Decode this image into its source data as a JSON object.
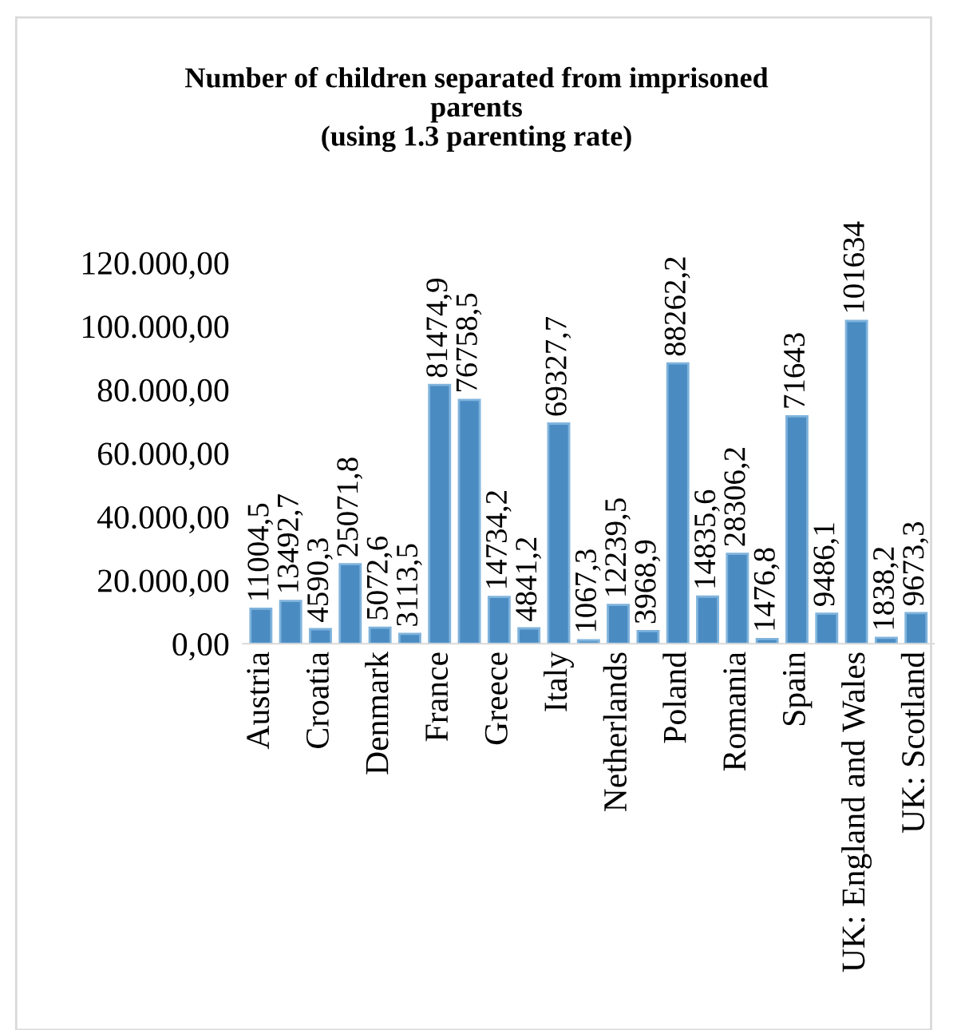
{
  "chart_data": {
    "type": "bar",
    "title": "Number of children separated from imprisoned\nparents\n(using 1.3 parenting rate)",
    "categories": [
      "Austria",
      null,
      "Croatia",
      null,
      "Denmark",
      null,
      "France",
      null,
      "Greece",
      null,
      "Italy",
      null,
      "Netherlands",
      null,
      "Poland",
      null,
      "Romania",
      null,
      "Spain",
      null,
      "UK: England and Wales",
      null,
      "UK: Scotland"
    ],
    "values": [
      11004.5,
      13492.7,
      4590.3,
      25071.8,
      5072.6,
      3113.5,
      81474.9,
      76758.5,
      14734.2,
      4841.2,
      69327.7,
      1067.3,
      12239.5,
      3968.9,
      88262.2,
      14835.6,
      28306.2,
      1476.8,
      71643,
      9486.1,
      101634,
      1838.2,
      9673.3
    ],
    "value_labels": [
      "11004,5",
      "13492,7",
      "4590,3",
      "25071,8",
      "5072,6",
      "3113,5",
      "81474,9",
      "76758,5",
      "14734,2",
      "4841,2",
      "69327,7",
      "1067,3",
      "12239,5",
      "3968,9",
      "88262,2",
      "14835,6",
      "28306,2",
      "1476,8",
      "71643",
      "9486,1",
      "101634",
      "1838,2",
      "9673,3"
    ],
    "color": "#4a8cc2",
    "ylim": [
      0,
      120000
    ],
    "yticks": [
      {
        "value": 0,
        "label": "0,00"
      },
      {
        "value": 20000,
        "label": "20.000,00"
      },
      {
        "value": 40000,
        "label": "40.000,00"
      },
      {
        "value": 60000,
        "label": "60.000,00"
      },
      {
        "value": 80000,
        "label": "80.000,00"
      },
      {
        "value": 100000,
        "label": "100.000,00"
      },
      {
        "value": 120000,
        "label": "120.000,00"
      }
    ],
    "grid": false,
    "legend": false
  }
}
